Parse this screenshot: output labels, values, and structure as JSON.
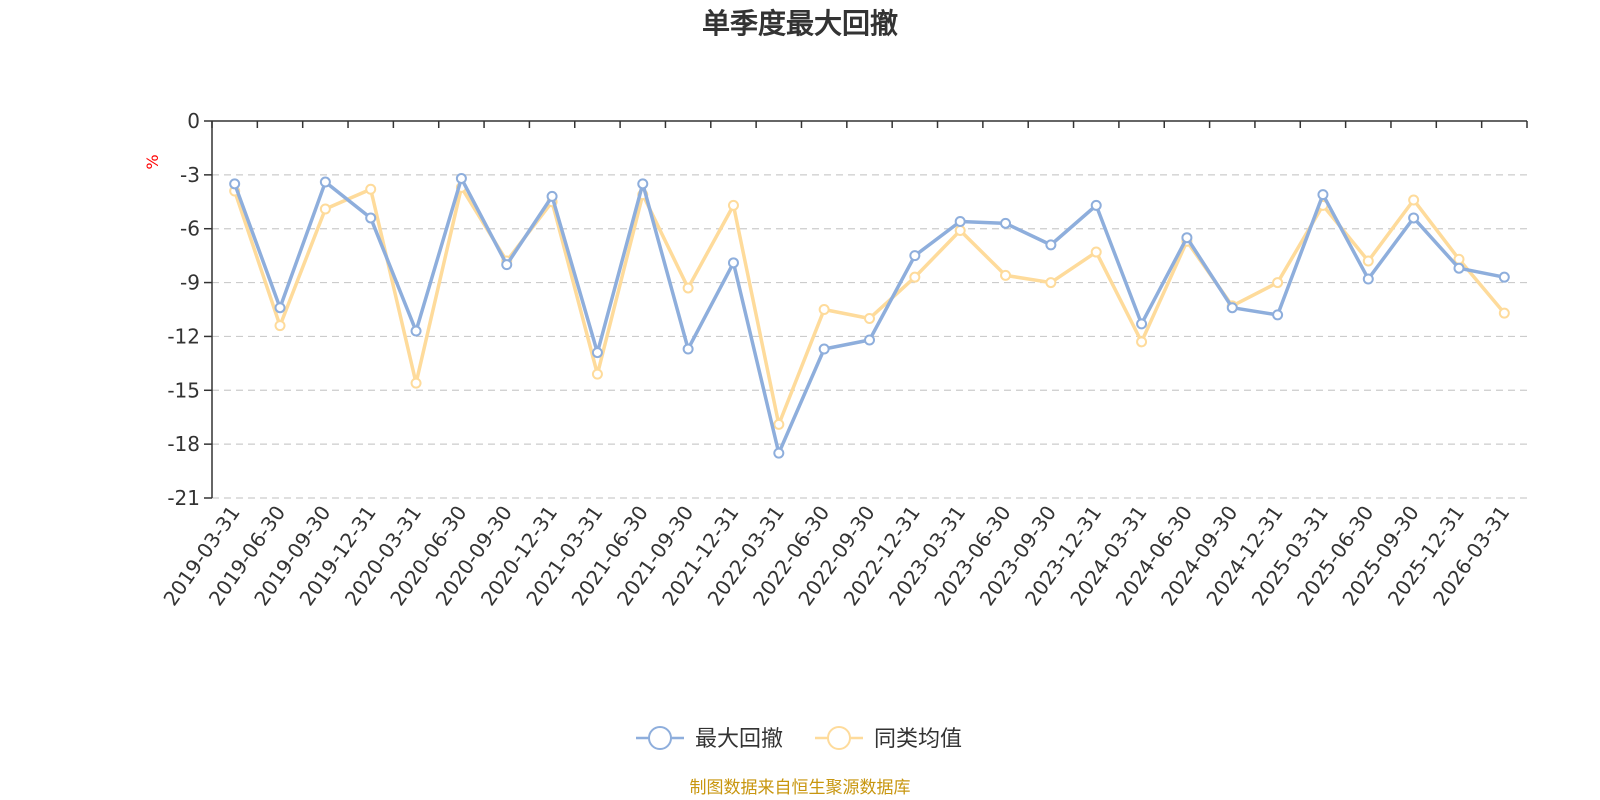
{
  "colors": {
    "series1": "#8eaedc",
    "series2": "#fedb9b",
    "grid": "#cccccc",
    "axis": "#333333",
    "unit": "#ff0000",
    "source": "#c8960f"
  },
  "footer": {
    "source": "制图数据来自恒生聚源数据库"
  },
  "chart_data": {
    "type": "line",
    "title": "单季度最大回撤",
    "unit": "%",
    "x": [
      "2019-03-31",
      "2019-06-30",
      "2019-09-30",
      "2019-12-31",
      "2020-03-31",
      "2020-06-30",
      "2020-09-30",
      "2020-12-31",
      "2021-03-31",
      "2021-06-30",
      "2021-09-30",
      "2021-12-31",
      "2022-03-31",
      "2022-06-30",
      "2022-09-30",
      "2022-12-31",
      "2023-03-31",
      "2023-06-30",
      "2023-09-30",
      "2023-12-31",
      "2024-03-31",
      "2024-06-30",
      "2024-09-30",
      "2024-12-31",
      "2025-03-31",
      "2025-06-30",
      "2025-09-30",
      "2025-12-31",
      "2026-03-31"
    ],
    "ylim": [
      -21,
      0
    ],
    "yticks": [
      "0",
      "-3",
      "-6",
      "-9",
      "-12",
      "-15",
      "-18",
      "-21"
    ],
    "grid": true,
    "legend": "bottom-center",
    "series": [
      {
        "name": "最大回撤",
        "values": [
          -3.5,
          -10.4,
          -3.4,
          -5.4,
          -11.7,
          -3.2,
          -8.0,
          -4.2,
          -12.9,
          -3.5,
          -12.7,
          -7.9,
          -18.5,
          -12.7,
          -12.2,
          -7.5,
          -5.6,
          -5.7,
          -6.9,
          -4.7,
          -11.3,
          -6.5,
          -10.4,
          -10.8,
          -4.1,
          -8.8,
          -5.4,
          -8.2,
          -8.7
        ]
      },
      {
        "name": "同类均值",
        "values": [
          -3.9,
          -11.4,
          -4.9,
          -3.8,
          -14.6,
          -3.7,
          -7.8,
          -4.5,
          -14.1,
          -4.1,
          -9.3,
          -4.7,
          -16.9,
          -10.5,
          -11.0,
          -8.7,
          -6.1,
          -8.6,
          -9.0,
          -7.3,
          -12.3,
          -6.7,
          -10.3,
          -9.0,
          -4.7,
          -7.8,
          -4.4,
          -7.7,
          -10.7
        ]
      }
    ]
  }
}
